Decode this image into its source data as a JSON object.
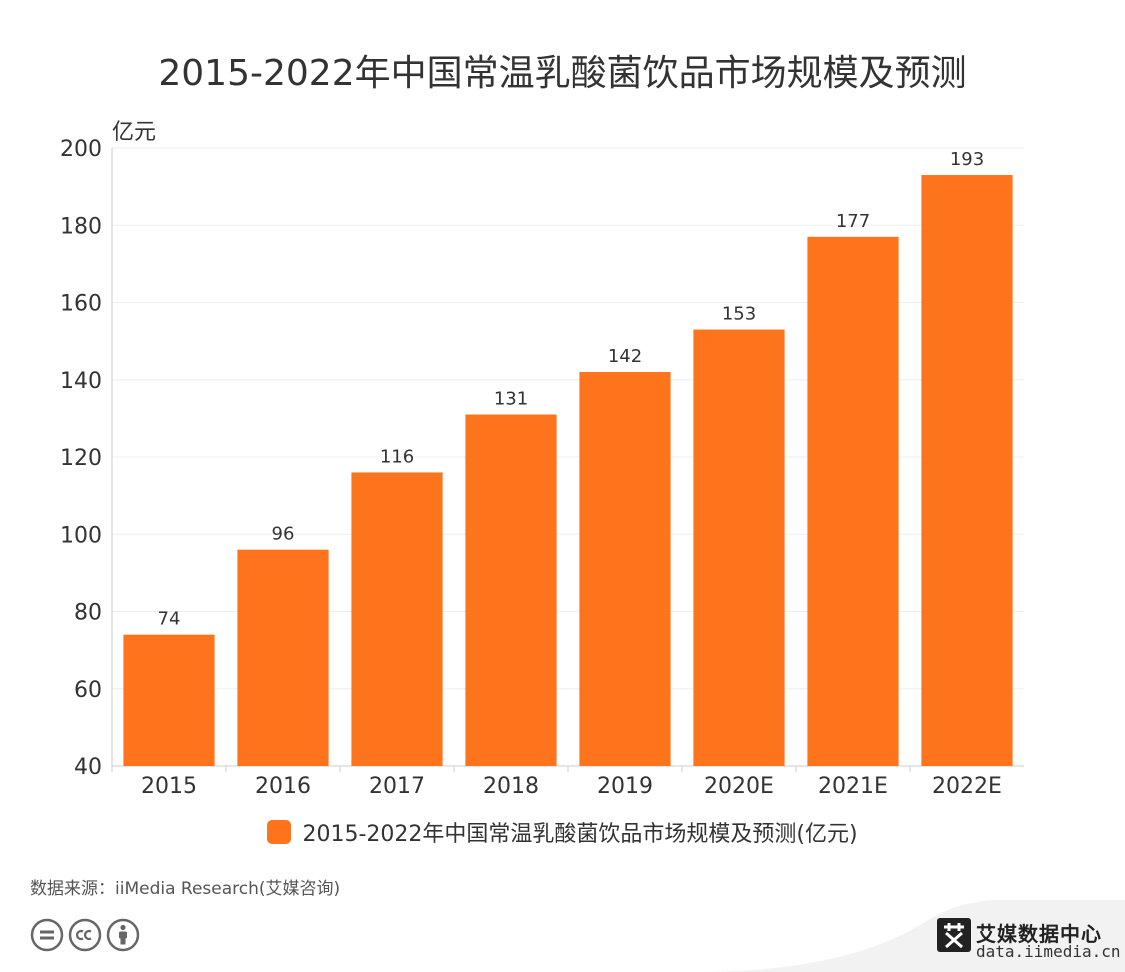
{
  "chart_data": {
    "type": "bar",
    "title": "2015-2022年中国常温乳酸菌饮品市场规模及预测",
    "ylabel": "亿元",
    "xlabel": "",
    "categories": [
      "2015",
      "2016",
      "2017",
      "2018",
      "2019",
      "2020E",
      "2021E",
      "2022E"
    ],
    "series": [
      {
        "name": "2015-2022年中国常温乳酸菌饮品市场规模及预测(亿元)",
        "values": [
          74,
          96,
          116,
          131,
          142,
          153,
          177,
          193
        ]
      }
    ],
    "ylim": [
      40,
      200
    ],
    "yticks": [
      40,
      60,
      80,
      100,
      120,
      140,
      160,
      180,
      200
    ],
    "grid": true,
    "legend_position": "bottom",
    "bar_color": "#fd741d"
  },
  "source": "数据来源：iiMedia Research(艾媒咨询)",
  "brand": {
    "name": "艾媒数据中心",
    "url": "data.iimedia.cn"
  },
  "icons": [
    "cc-equal-icon",
    "cc-logo-icon",
    "cc-by-person-icon",
    "iimedia-logo-icon"
  ]
}
